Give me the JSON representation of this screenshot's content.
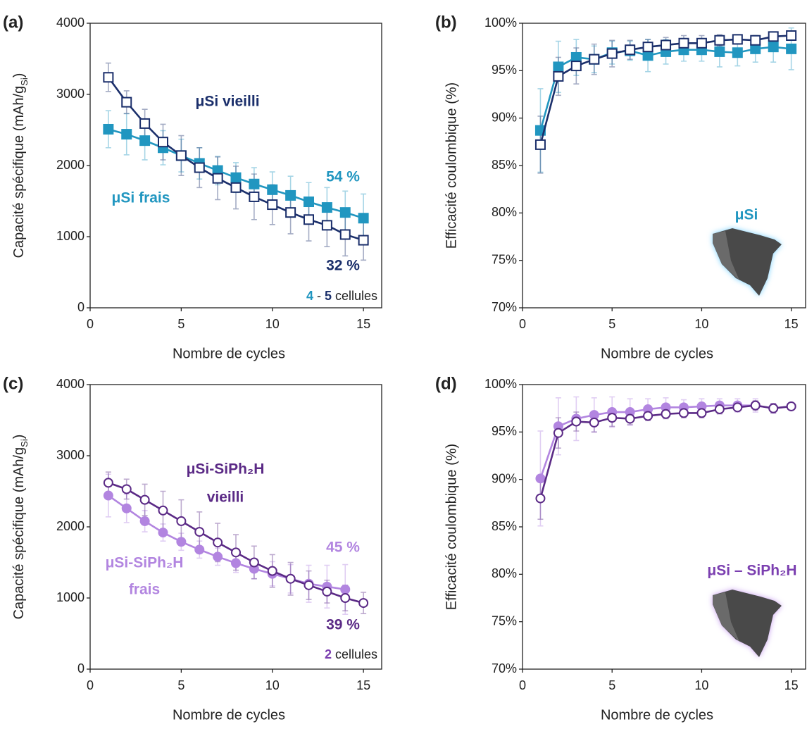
{
  "chart_data": [
    {
      "type": "line",
      "panel": "(a)",
      "x_label": "Nombre de cycles",
      "y_label": [
        "Capacité spécifique (mAh/g",
        "Si",
        ")"
      ],
      "x": [
        1,
        2,
        3,
        4,
        5,
        6,
        7,
        8,
        9,
        10,
        11,
        12,
        13,
        14,
        15
      ],
      "xlim": [
        0,
        16
      ],
      "xticks": [
        0,
        5,
        10,
        15
      ],
      "ylim": [
        0,
        4000
      ],
      "yticks": [
        0,
        1000,
        2000,
        3000,
        4000
      ],
      "grid": false,
      "series": [
        {
          "name": "μSi frais",
          "color": "#2196c0",
          "marker": "square",
          "filled": true,
          "values": [
            2510,
            2440,
            2350,
            2250,
            2140,
            2030,
            1930,
            1830,
            1740,
            1660,
            1580,
            1490,
            1410,
            1340,
            1260
          ],
          "errors": [
            260,
            290,
            270,
            240,
            230,
            220,
            200,
            210,
            230,
            250,
            270,
            270,
            280,
            300,
            340
          ]
        },
        {
          "name": "μSi vieilli",
          "color": "#1b2f6b",
          "marker": "square",
          "filled": false,
          "values": [
            3240,
            2890,
            2590,
            2330,
            2140,
            1970,
            1820,
            1690,
            1560,
            1450,
            1340,
            1240,
            1160,
            1030,
            950
          ],
          "errors": [
            200,
            160,
            200,
            250,
            280,
            280,
            300,
            300,
            320,
            280,
            300,
            300,
            300,
            300,
            280
          ]
        }
      ],
      "annotations": [
        {
          "text": "μSi vieilli",
          "color": "#1b2f6b"
        },
        {
          "text": "μSi frais",
          "color": "#2196c0"
        },
        {
          "text": "54 %",
          "color": "#2196c0"
        },
        {
          "text": "32 %",
          "color": "#1b2f6b"
        },
        {
          "parts": [
            {
              "text": "4",
              "color": "#2196c0"
            },
            {
              "text": " - ",
              "color": "#222222"
            },
            {
              "text": "5",
              "color": "#1b2f6b"
            },
            {
              "text": " cellules",
              "color": "#222222"
            }
          ]
        }
      ]
    },
    {
      "type": "line",
      "panel": "(b)",
      "x_label": "Nombre de cycles",
      "y_label": "Efficacité coulombique (%)",
      "x": [
        1,
        2,
        3,
        4,
        5,
        6,
        7,
        8,
        9,
        10,
        11,
        12,
        13,
        14,
        15
      ],
      "xlim": [
        0,
        15.8
      ],
      "xticks": [
        0,
        5,
        10,
        15
      ],
      "ylim": [
        70,
        100
      ],
      "yticks": [
        {
          "value": 70,
          "label": "70%"
        },
        {
          "value": 75,
          "label": "75%"
        },
        {
          "value": 80,
          "label": "80%"
        },
        {
          "value": 85,
          "label": "85%"
        },
        {
          "value": 90,
          "label": "90%"
        },
        {
          "value": 95,
          "label": "95%"
        },
        {
          "value": 100,
          "label": "100%"
        }
      ],
      "grid": false,
      "series": [
        {
          "name": "μSi frais",
          "color": "#2196c0",
          "marker": "square",
          "filled": true,
          "values": [
            88.7,
            95.4,
            96.4,
            96.2,
            96.9,
            97.1,
            96.6,
            97.0,
            97.2,
            97.2,
            97.0,
            96.9,
            97.3,
            97.5,
            97.3
          ],
          "errors": [
            4.4,
            2.7,
            1.9,
            1.4,
            1.2,
            1.0,
            1.7,
            1.3,
            1.2,
            1.2,
            1.6,
            1.4,
            1.4,
            1.6,
            2.2
          ]
        },
        {
          "name": "μSi vieilli",
          "color": "#1b2f6b",
          "marker": "square",
          "filled": false,
          "values": [
            87.2,
            94.4,
            95.5,
            96.2,
            96.8,
            97.2,
            97.5,
            97.7,
            97.9,
            97.9,
            98.2,
            98.3,
            98.2,
            98.6,
            98.7
          ],
          "errors": [
            3.0,
            2.0,
            1.9,
            1.6,
            1.4,
            1.0,
            0.8,
            0.8,
            0.8,
            0.8,
            0.6,
            0.5,
            0.5,
            0.3,
            0.3
          ]
        }
      ],
      "annotations": [
        {
          "text": "μSi",
          "color": "#2196c0"
        }
      ]
    },
    {
      "type": "line",
      "panel": "(c)",
      "x_label": "Nombre de cycles",
      "y_label": [
        "Capacité spécifique (mAh/g",
        "Si",
        ")"
      ],
      "x": [
        1,
        2,
        3,
        4,
        5,
        6,
        7,
        8,
        9,
        10,
        11,
        12,
        13,
        14,
        15
      ],
      "xlim": [
        0,
        16
      ],
      "xticks": [
        0,
        5,
        10,
        15
      ],
      "ylim": [
        0,
        4000
      ],
      "yticks": [
        0,
        1000,
        2000,
        3000,
        4000
      ],
      "grid": false,
      "series": [
        {
          "name": "μSi-SiPh₂H frais",
          "color": "#b285e0",
          "marker": "circle",
          "filled": true,
          "values": [
            2440,
            2260,
            2080,
            1920,
            1790,
            1680,
            1580,
            1490,
            1410,
            1340,
            1270,
            1200,
            1160,
            1120,
            null
          ],
          "errors": [
            300,
            200,
            150,
            120,
            120,
            120,
            120,
            130,
            140,
            170,
            200,
            260,
            300,
            350,
            null
          ]
        },
        {
          "name": "μSi-SiPh₂H vieilli",
          "color": "#5b2a86",
          "marker": "circle",
          "filled": false,
          "values": [
            2620,
            2530,
            2380,
            2230,
            2080,
            1930,
            1780,
            1640,
            1500,
            1380,
            1270,
            1180,
            1090,
            1000,
            930
          ],
          "errors": [
            150,
            140,
            220,
            270,
            300,
            280,
            270,
            250,
            230,
            230,
            230,
            200,
            160,
            180,
            150
          ]
        }
      ],
      "annotations": [
        {
          "text": "μSi-SiPh₂H",
          "color": "#5b2a86"
        },
        {
          "text": "vieilli",
          "color": "#5b2a86"
        },
        {
          "text": "μSi-SiPh₂H",
          "color": "#b285e0"
        },
        {
          "text": "frais",
          "color": "#b285e0"
        },
        {
          "text": "45 %",
          "color": "#b285e0"
        },
        {
          "text": "39 %",
          "color": "#5b2a86"
        },
        {
          "parts": [
            {
              "text": "2",
              "color": "#7b3fb0"
            },
            {
              "text": " cellules",
              "color": "#222222"
            }
          ]
        }
      ]
    },
    {
      "type": "line",
      "panel": "(d)",
      "x_label": "Nombre de cycles",
      "y_label": "Efficacité coulombique (%)",
      "x": [
        1,
        2,
        3,
        4,
        5,
        6,
        7,
        8,
        9,
        10,
        11,
        12,
        13,
        14,
        15
      ],
      "xlim": [
        0,
        15.8
      ],
      "xticks": [
        0,
        5,
        10,
        15
      ],
      "ylim": [
        70,
        100
      ],
      "yticks": [
        {
          "value": 70,
          "label": "70%"
        },
        {
          "value": 75,
          "label": "75%"
        },
        {
          "value": 80,
          "label": "80%"
        },
        {
          "value": 85,
          "label": "85%"
        },
        {
          "value": 90,
          "label": "90%"
        },
        {
          "value": 95,
          "label": "95%"
        },
        {
          "value": 100,
          "label": "100%"
        }
      ],
      "grid": false,
      "series": [
        {
          "name": "μSi-SiPh₂H frais",
          "color": "#b285e0",
          "marker": "circle",
          "filled": true,
          "values": [
            90.1,
            95.6,
            96.4,
            96.8,
            97.1,
            97.1,
            97.4,
            97.6,
            97.6,
            97.7,
            97.8,
            97.8,
            97.8,
            97.5,
            97.7
          ],
          "errors": [
            5.0,
            3.0,
            2.3,
            1.8,
            1.6,
            1.4,
            1.1,
            1.0,
            0.8,
            0.8,
            0.7,
            0.7,
            0.7,
            0.5,
            0.3
          ]
        },
        {
          "name": "μSi-SiPh₂H vieilli",
          "color": "#5b2a86",
          "marker": "circle",
          "filled": false,
          "values": [
            88.0,
            94.9,
            96.1,
            96.0,
            96.5,
            96.4,
            96.7,
            96.9,
            97.0,
            97.0,
            97.4,
            97.6,
            97.8,
            97.5,
            97.7
          ],
          "errors": [
            2.2,
            1.6,
            1.0,
            1.0,
            0.9,
            0.6,
            0.5,
            0.5,
            0.5,
            0.5,
            0.5,
            0.4,
            0.5,
            0.5,
            0.3
          ]
        }
      ],
      "annotations": [
        {
          "text": "μSi – SiPh₂H",
          "color": "#7b3fb0"
        }
      ]
    }
  ]
}
